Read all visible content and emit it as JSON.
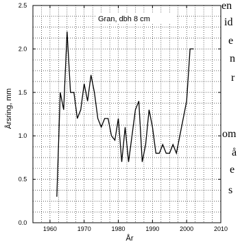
{
  "background_text": [
    "en",
    "id",
    "e",
    "n",
    "r",
    "om",
    "å",
    "e",
    "s"
  ],
  "chart_data": {
    "type": "line",
    "title": "Gran, dbh 8 cm",
    "xlabel": "År",
    "ylabel": "Årsring, mm",
    "xlim": [
      1955,
      2010
    ],
    "ylim": [
      0.0,
      2.5
    ],
    "x_ticks": [
      1960,
      1970,
      1980,
      1990,
      2000,
      2010
    ],
    "y_ticks": [
      0.0,
      0.5,
      1.0,
      1.5,
      2.0,
      2.5
    ],
    "x_tick_labels": [
      "1960",
      "1970",
      "1980",
      "1990",
      "2000",
      "2010"
    ],
    "y_tick_labels": [
      "0.0",
      "0.5",
      "1.0",
      "1.5",
      "2.0",
      "2.5"
    ],
    "grid": true,
    "line_color": "#000000",
    "series": [
      {
        "x": [
          1962,
          1963,
          1964,
          1965,
          1966,
          1967,
          1968,
          1969,
          1970,
          1971,
          1972,
          1973,
          1974,
          1975,
          1976,
          1977,
          1978,
          1979,
          1980,
          1981,
          1982,
          1983,
          1984,
          1985,
          1986,
          1987,
          1988,
          1989,
          1990,
          1991,
          1992,
          1993,
          1994,
          1995,
          1996,
          1997,
          1998,
          1999,
          2000,
          2001,
          2002
        ],
        "y": [
          0.3,
          1.5,
          1.3,
          2.2,
          1.5,
          1.5,
          1.2,
          1.3,
          1.6,
          1.4,
          1.7,
          1.5,
          1.2,
          1.1,
          1.2,
          1.2,
          1.0,
          0.95,
          1.2,
          0.7,
          1.1,
          0.7,
          1.0,
          1.3,
          1.4,
          0.7,
          0.9,
          1.3,
          1.1,
          0.8,
          0.8,
          0.9,
          0.8,
          0.8,
          0.9,
          0.8,
          1.0,
          1.2,
          1.4,
          2.0,
          2.0
        ]
      }
    ]
  }
}
